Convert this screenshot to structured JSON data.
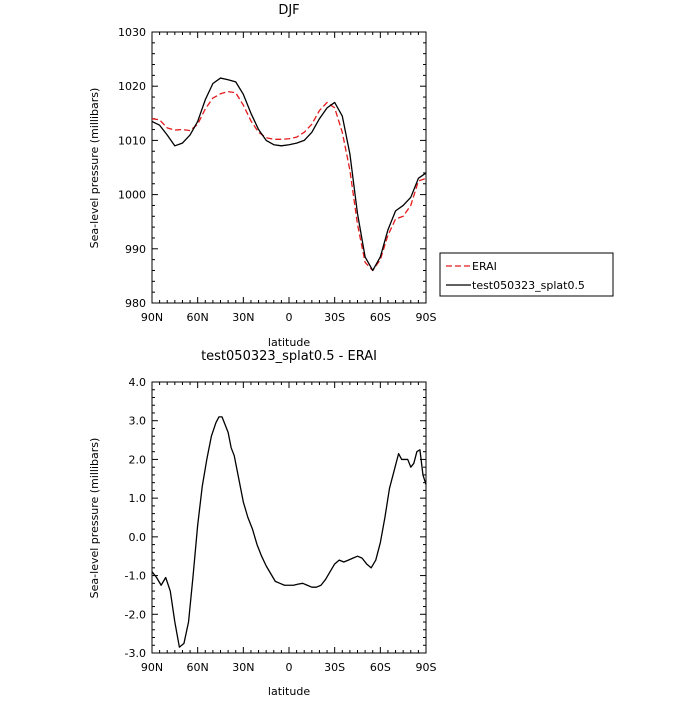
{
  "chart_data": [
    {
      "type": "line",
      "title": "DJF",
      "xlabel": "latitude",
      "ylabel": "Sea-level pressure (millibars)",
      "xlim": [
        90,
        -90
      ],
      "ylim": [
        980,
        1030
      ],
      "xticks": [
        90,
        60,
        30,
        0,
        -30,
        -60,
        -90
      ],
      "xtick_labels": [
        "90N",
        "60N",
        "30N",
        "0",
        "30S",
        "60S",
        "90S"
      ],
      "yticks": [
        980,
        990,
        1000,
        1010,
        1020,
        1030
      ],
      "ytick_labels": [
        "980",
        "990",
        "1000",
        "1010",
        "1020",
        "1030"
      ],
      "legend_position": "right",
      "series": [
        {
          "name": "ERAI",
          "color": "#e41a1c",
          "dash": "6,3",
          "x": [
            90,
            85,
            80,
            75,
            70,
            65,
            60,
            55,
            50,
            45,
            40,
            35,
            30,
            25,
            20,
            15,
            10,
            5,
            0,
            -5,
            -10,
            -15,
            -20,
            -25,
            -30,
            -35,
            -40,
            -45,
            -50,
            -55,
            -60,
            -65,
            -70,
            -75,
            -80,
            -85,
            -90
          ],
          "y": [
            1014.0,
            1013.8,
            1012.3,
            1011.9,
            1012.0,
            1011.8,
            1013.0,
            1015.8,
            1017.8,
            1018.6,
            1019.0,
            1018.8,
            1016.5,
            1013.6,
            1011.5,
            1010.5,
            1010.2,
            1010.2,
            1010.3,
            1010.6,
            1011.5,
            1013.0,
            1015.5,
            1017.0,
            1016.0,
            1011.5,
            1004.5,
            994.5,
            987.5,
            986.0,
            988.0,
            992.5,
            995.5,
            996.0,
            998.0,
            1002.5,
            1003.0
          ]
        },
        {
          "name": "test050323_splat0.5",
          "color": "#000000",
          "dash": "",
          "x": [
            90,
            85,
            80,
            75,
            70,
            65,
            60,
            55,
            50,
            45,
            40,
            35,
            30,
            25,
            20,
            15,
            10,
            5,
            0,
            -5,
            -10,
            -15,
            -20,
            -25,
            -30,
            -35,
            -40,
            -45,
            -50,
            -55,
            -60,
            -65,
            -70,
            -75,
            -80,
            -85,
            -90
          ],
          "y": [
            1013.5,
            1012.8,
            1011.0,
            1009.0,
            1009.5,
            1011.0,
            1013.5,
            1017.5,
            1020.5,
            1021.5,
            1021.2,
            1020.8,
            1018.5,
            1015.0,
            1012.0,
            1010.0,
            1009.2,
            1009.0,
            1009.2,
            1009.5,
            1010.0,
            1011.5,
            1014.0,
            1016.0,
            1017.0,
            1014.5,
            1007.5,
            996.5,
            988.5,
            986.0,
            988.5,
            993.5,
            997.0,
            998.0,
            999.5,
            1003.0,
            1004.0
          ]
        }
      ]
    },
    {
      "type": "line",
      "title": "test050323_splat0.5 - ERAI",
      "xlabel": "latitude",
      "ylabel": "Sea-level pressure (millibars)",
      "xlim": [
        90,
        -90
      ],
      "ylim": [
        -3.0,
        4.0
      ],
      "xticks": [
        90,
        60,
        30,
        0,
        -30,
        -60,
        -90
      ],
      "xtick_labels": [
        "90N",
        "60N",
        "30N",
        "0",
        "30S",
        "60S",
        "90S"
      ],
      "yticks": [
        -3,
        -2,
        -1,
        0,
        1,
        2,
        3,
        4
      ],
      "ytick_labels": [
        "-3.0",
        "-2.0",
        "-1.0",
        "0.0",
        "1.0",
        "2.0",
        "3.0",
        "4.0"
      ],
      "series": [
        {
          "color": "#000000",
          "dash": "",
          "x": [
            90,
            87,
            84,
            81,
            78,
            75,
            72,
            69,
            66,
            63,
            60,
            57,
            54,
            51,
            48,
            46,
            44,
            42,
            40,
            38,
            36,
            33,
            30,
            27,
            24,
            21,
            18,
            15,
            12,
            9,
            6,
            3,
            0,
            -3,
            -6,
            -9,
            -12,
            -15,
            -18,
            -21,
            -24,
            -27,
            -30,
            -33,
            -36,
            -39,
            -42,
            -45,
            -48,
            -51,
            -54,
            -57,
            -60,
            -63,
            -66,
            -69,
            -72,
            -74,
            -76,
            -78,
            -80,
            -82,
            -84,
            -86,
            -88,
            -90
          ],
          "y": [
            -0.9,
            -1.05,
            -1.25,
            -1.05,
            -1.4,
            -2.2,
            -2.85,
            -2.75,
            -2.2,
            -1.0,
            0.3,
            1.3,
            2.0,
            2.6,
            2.95,
            3.1,
            3.1,
            2.9,
            2.7,
            2.3,
            2.1,
            1.5,
            0.9,
            0.5,
            0.2,
            -0.2,
            -0.5,
            -0.75,
            -0.95,
            -1.15,
            -1.2,
            -1.25,
            -1.25,
            -1.25,
            -1.22,
            -1.2,
            -1.25,
            -1.3,
            -1.3,
            -1.25,
            -1.1,
            -0.9,
            -0.7,
            -0.6,
            -0.65,
            -0.6,
            -0.55,
            -0.5,
            -0.55,
            -0.7,
            -0.8,
            -0.6,
            -0.15,
            0.5,
            1.25,
            1.7,
            2.15,
            2.0,
            2.0,
            2.0,
            1.8,
            1.9,
            2.2,
            2.25,
            1.6,
            1.35
          ]
        }
      ]
    }
  ]
}
